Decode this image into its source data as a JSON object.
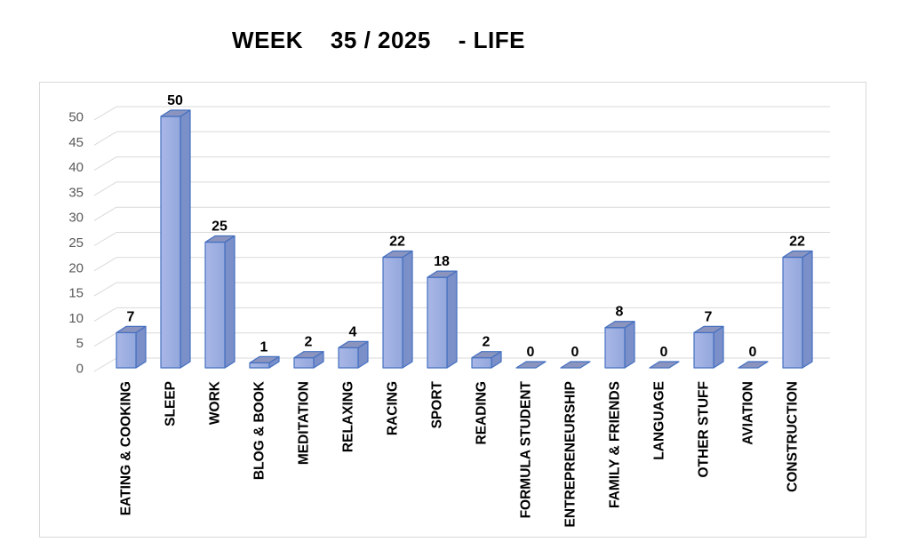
{
  "page": {
    "title": "WEEK    35 / 2025    - LIFE"
  },
  "chart_data": {
    "type": "bar",
    "style": "3d-clustered-column",
    "title": "WEEK    35 / 2025    - LIFE",
    "categories": [
      "EATING & COOKING",
      "SLEEP",
      "WORK",
      "BLOG & BOOK",
      "MEDITATION",
      "RELAXING",
      "RACING",
      "SPORT",
      "READING",
      "FORMULA STUDENT",
      "ENTREPRENEURSHIP",
      "FAMILY & FRIENDS",
      "LANGUAGE",
      "OTHER STUFF",
      "AVIATION",
      "CONSTRUCTION"
    ],
    "values": [
      7,
      50,
      25,
      1,
      2,
      4,
      22,
      18,
      2,
      0,
      0,
      8,
      0,
      7,
      0,
      22
    ],
    "data_labels": [
      "7",
      "50",
      "25",
      "1",
      "2",
      "4",
      "22",
      "18",
      "2",
      "0",
      "0",
      "8",
      "0",
      "7",
      "0",
      "22"
    ],
    "xlabel": "",
    "ylabel": "",
    "ylim": [
      0,
      50
    ],
    "ytick_step": 5,
    "ytick_labels": [
      "0",
      "5",
      "10",
      "15",
      "20",
      "25",
      "30",
      "35",
      "40",
      "45",
      "50"
    ],
    "grid": true,
    "legend": "none",
    "colors": {
      "bar_front_light": "#A9B7E6",
      "bar_front_dark": "#93A7DC",
      "bar_top": "#8A94BF",
      "bar_side": "#7B8FC9",
      "bar_border": "#4470C0",
      "gridline": "#D9D9D9",
      "axis_text": "#595959",
      "label_text": "#000000",
      "chart_border": "#D9D9D9",
      "background": "#FFFFFF"
    }
  }
}
